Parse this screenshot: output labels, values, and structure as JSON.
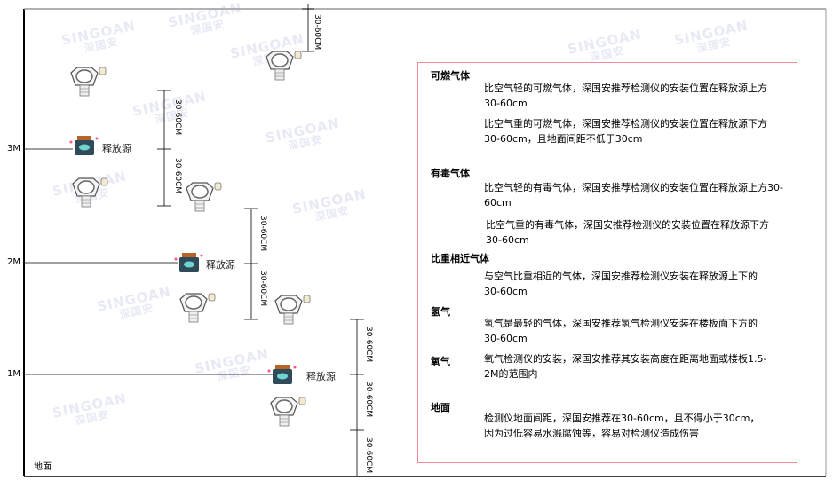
{
  "watermark": {
    "brand": "SINGOAN",
    "cn": "深国安"
  },
  "levels": {
    "l3": "3M",
    "l2": "2M",
    "l1": "1M",
    "ground": "地面"
  },
  "source_label": "释放源",
  "dimension_label": "30-60CM",
  "colors": {
    "panel_border": "#f08a96",
    "source_body": "#2f4a58",
    "source_cap": "#b5652a"
  },
  "panel": {
    "sections": [
      {
        "title": "可燃气体",
        "paras": [
          "比空气轻的可燃气体，深国安推荐检测仪的安装位置在释放源上方30-60cm",
          "比空气重的可燃气体，深国安推荐检测仪的安装位置在释放源下方30-60cm，且地面间距不低于30cm"
        ]
      },
      {
        "title": "有毒气体",
        "paras": [
          "比空气轻的有毒气体，深国安推荐检测仪的安装位置在释放源上方30-60cm",
          "比空气重的有毒气体，深国安推荐检测仪的安装位置在释放源下方30-60cm"
        ]
      },
      {
        "title": "比重相近气体",
        "paras": [
          "与空气比重相近的气体，深国安推荐检测仪安装在释放源上下的30-60cm"
        ]
      },
      {
        "title": "氢气",
        "paras": [
          "氢气是最轻的气体，深国安推荐氢气检测仪安装在楼板面下方的30-60cm"
        ]
      },
      {
        "title": "氧气",
        "paras": [
          "氧气检测仪的安装，深国安推荐其安装高度在距离地面或楼板1.5-2M的范围内"
        ]
      },
      {
        "title": "地面",
        "paras": [
          "检测仪地面间距，深国安推荐在30-60cm，且不得小于30cm，因为过低容易水溅腐蚀等，容易对检测仪造成伤害"
        ]
      }
    ]
  }
}
